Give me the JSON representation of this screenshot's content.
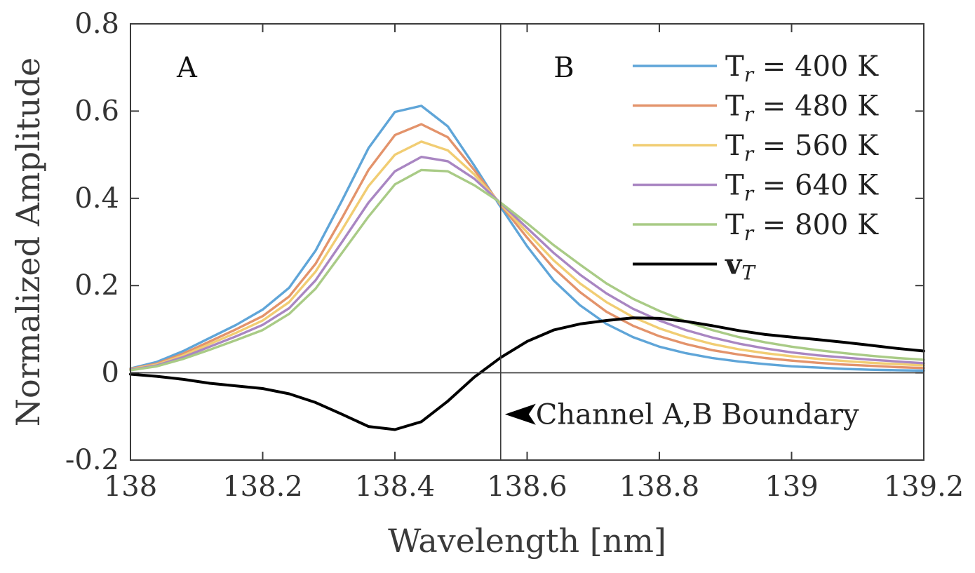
{
  "chart_data": {
    "type": "line",
    "xlabel": "Wavelength [nm]",
    "ylabel": "Normalized Amplitude",
    "xlim": [
      138,
      139.2
    ],
    "ylim": [
      -0.2,
      0.8
    ],
    "xticks": [
      138,
      138.2,
      138.4,
      138.6,
      138.8,
      139,
      139.2
    ],
    "xtick_labels": [
      "138",
      "138.2",
      "138.4",
      "138.6",
      "138.8",
      "139",
      "139.2"
    ],
    "yticks": [
      -0.2,
      0,
      0.2,
      0.4,
      0.6,
      0.8
    ],
    "ytick_labels": [
      "-0.2",
      "0",
      "0.2",
      "0.4",
      "0.6",
      "0.8"
    ],
    "grid": false,
    "legend_position": "top-right",
    "boundary_x": 138.56,
    "region_labels": [
      {
        "text": "A",
        "x": 138.07,
        "y": 0.7
      },
      {
        "text": "B",
        "x": 138.64,
        "y": 0.7
      }
    ],
    "annotation": {
      "text": "Channel A,B Boundary",
      "x": 138.56,
      "y": -0.095
    },
    "x": [
      138.0,
      138.04,
      138.08,
      138.12,
      138.16,
      138.2,
      138.24,
      138.28,
      138.32,
      138.36,
      138.4,
      138.44,
      138.48,
      138.52,
      138.56,
      138.6,
      138.64,
      138.68,
      138.72,
      138.76,
      138.8,
      138.84,
      138.88,
      138.92,
      138.96,
      139.0,
      139.04,
      139.08,
      139.12,
      139.16,
      139.2
    ],
    "series": [
      {
        "name": "T",
        "sub": "r",
        "suffix": " = 400 K",
        "color": "#5fa5d8",
        "values": [
          0.01,
          0.025,
          0.05,
          0.08,
          0.11,
          0.145,
          0.195,
          0.28,
          0.395,
          0.515,
          0.598,
          0.612,
          0.565,
          0.475,
          0.38,
          0.29,
          0.212,
          0.155,
          0.112,
          0.082,
          0.06,
          0.045,
          0.034,
          0.026,
          0.02,
          0.015,
          0.012,
          0.009,
          0.007,
          0.006,
          0.005
        ]
      },
      {
        "name": "T",
        "sub": "r",
        "suffix": " = 480 K",
        "color": "#e3936b",
        "values": [
          0.009,
          0.021,
          0.044,
          0.072,
          0.1,
          0.13,
          0.175,
          0.25,
          0.355,
          0.465,
          0.545,
          0.57,
          0.54,
          0.465,
          0.385,
          0.31,
          0.24,
          0.185,
          0.14,
          0.108,
          0.084,
          0.066,
          0.052,
          0.042,
          0.034,
          0.028,
          0.023,
          0.019,
          0.016,
          0.013,
          0.011
        ]
      },
      {
        "name": "T",
        "sub": "r",
        "suffix": " = 560 K",
        "color": "#f1cd73",
        "values": [
          0.008,
          0.019,
          0.04,
          0.066,
          0.092,
          0.12,
          0.162,
          0.232,
          0.328,
          0.428,
          0.5,
          0.53,
          0.51,
          0.455,
          0.387,
          0.322,
          0.258,
          0.205,
          0.162,
          0.128,
          0.102,
          0.082,
          0.066,
          0.054,
          0.045,
          0.038,
          0.032,
          0.027,
          0.023,
          0.02,
          0.017
        ]
      },
      {
        "name": "T",
        "sub": "r",
        "suffix": " = 640 K",
        "color": "#a986c2",
        "values": [
          0.007,
          0.017,
          0.036,
          0.06,
          0.084,
          0.11,
          0.148,
          0.212,
          0.3,
          0.39,
          0.462,
          0.495,
          0.485,
          0.445,
          0.389,
          0.332,
          0.275,
          0.225,
          0.182,
          0.147,
          0.12,
          0.098,
          0.081,
          0.067,
          0.056,
          0.047,
          0.04,
          0.035,
          0.03,
          0.026,
          0.022
        ]
      },
      {
        "name": "T",
        "sub": "r",
        "suffix": " = 800 K",
        "color": "#a9cb86",
        "values": [
          0.006,
          0.015,
          0.032,
          0.053,
          0.075,
          0.098,
          0.135,
          0.193,
          0.275,
          0.358,
          0.432,
          0.465,
          0.462,
          0.43,
          0.39,
          0.343,
          0.293,
          0.248,
          0.205,
          0.17,
          0.142,
          0.118,
          0.098,
          0.082,
          0.07,
          0.06,
          0.052,
          0.045,
          0.039,
          0.034,
          0.03
        ]
      },
      {
        "name": "v",
        "sub": "T",
        "suffix": "",
        "color": "#000000",
        "bold": true,
        "values": [
          -0.003,
          -0.008,
          -0.015,
          -0.024,
          -0.03,
          -0.036,
          -0.048,
          -0.068,
          -0.095,
          -0.123,
          -0.13,
          -0.112,
          -0.065,
          -0.01,
          0.035,
          0.072,
          0.098,
          0.112,
          0.12,
          0.126,
          0.125,
          0.118,
          0.108,
          0.097,
          0.088,
          0.082,
          0.076,
          0.07,
          0.063,
          0.056,
          0.05
        ]
      }
    ]
  }
}
